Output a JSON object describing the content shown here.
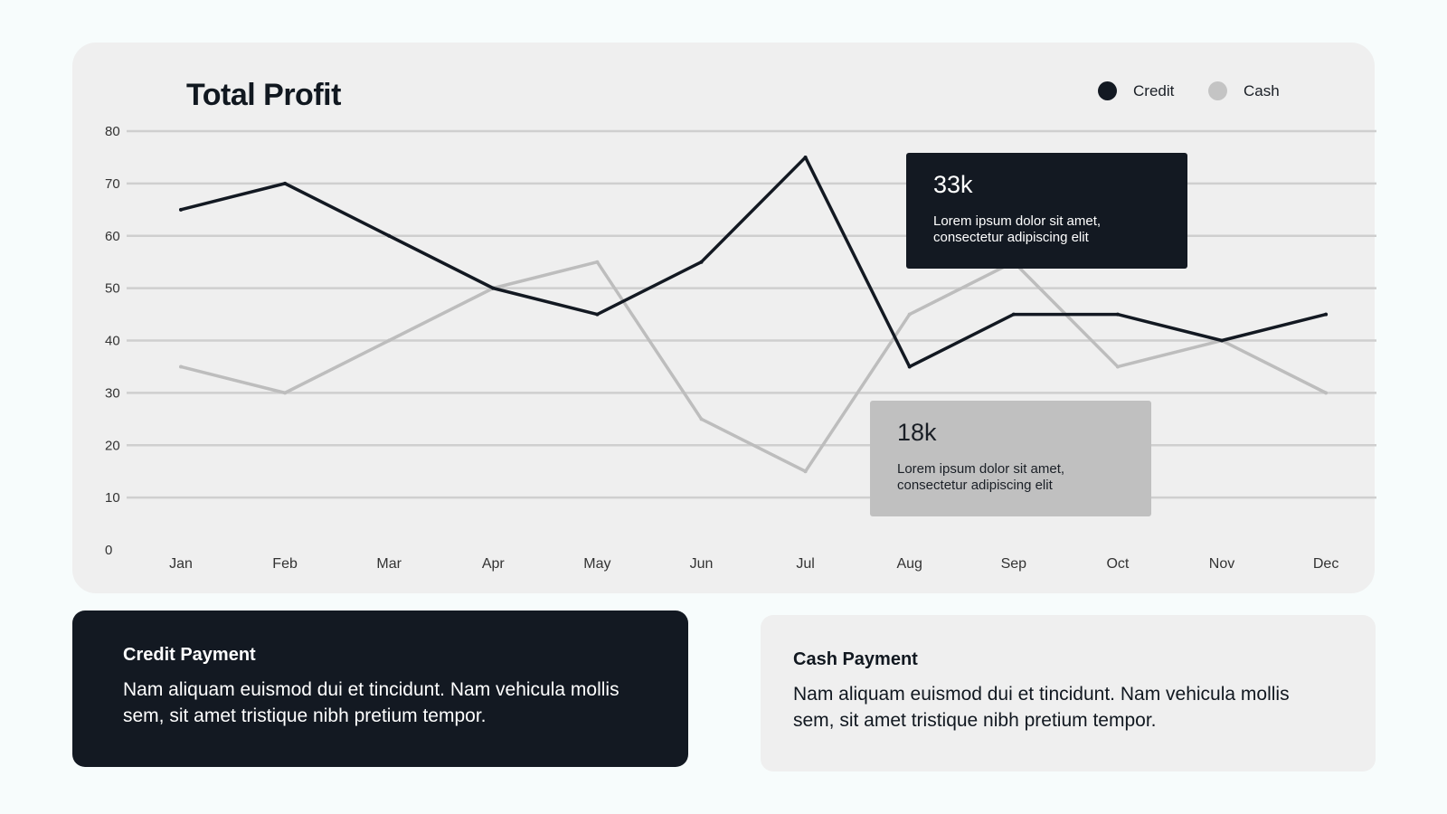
{
  "chart_data": {
    "type": "line",
    "title": "Total Profit",
    "categories": [
      "Jan",
      "Feb",
      "Mar",
      "Apr",
      "May",
      "Jun",
      "Jul",
      "Aug",
      "Sep",
      "Oct",
      "Nov",
      "Dec"
    ],
    "series": [
      {
        "name": "Credit",
        "color": "#131922",
        "values": [
          65,
          70,
          60,
          50,
          45,
          55,
          75,
          35,
          45,
          45,
          40,
          45
        ]
      },
      {
        "name": "Cash",
        "color": "#bdbdbd",
        "values": [
          35,
          30,
          40,
          50,
          55,
          25,
          15,
          45,
          55,
          35,
          40,
          30
        ]
      }
    ],
    "yticks": [
      0,
      10,
      20,
      30,
      40,
      50,
      60,
      70,
      80
    ],
    "ylim": [
      0,
      80
    ],
    "grid": true,
    "legend_position": "top-right",
    "annotations": [
      {
        "series": "Credit",
        "value": "33k",
        "text": "Lorem ipsum dolor sit amet, consectetur adipiscing elit"
      },
      {
        "series": "Cash",
        "value": "18k",
        "text": "Lorem ipsum dolor sit amet, consectetur adipiscing elit"
      }
    ]
  },
  "cards": {
    "credit": {
      "title": "Credit Payment",
      "text": "Nam aliquam euismod dui et tincidunt. Nam vehicula mollis sem, sit amet tristique nibh pretium tempor."
    },
    "cash": {
      "title": "Cash Payment",
      "text": "Nam aliquam euismod dui et tincidunt. Nam vehicula mollis sem, sit amet tristique nibh pretium tempor."
    }
  }
}
